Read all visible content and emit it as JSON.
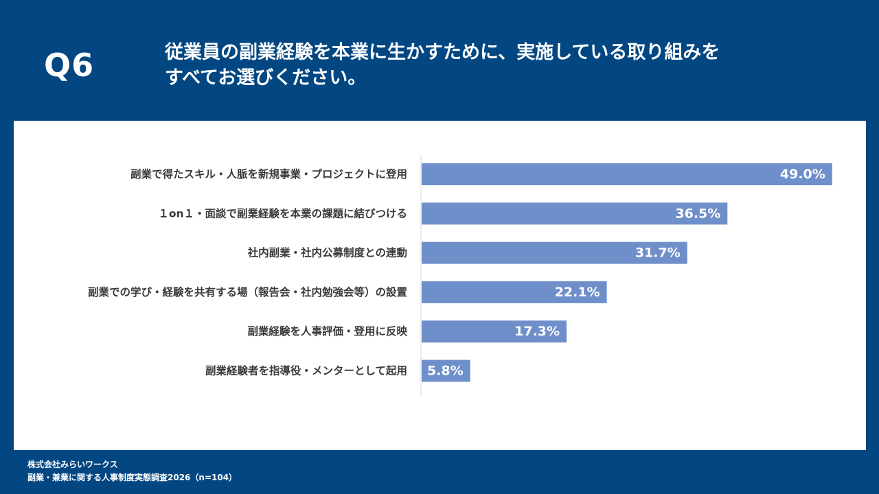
{
  "header": {
    "question_number": "Q6",
    "question_line1": "従業員の副業経験を本業に生かすために、実施している取り組みを",
    "question_line2": "すべてお選びください。"
  },
  "footer": {
    "company": "株式会社みらいワークス",
    "survey": "副業・兼業に関する人事制度実態調査2026（n=104）"
  },
  "colors": {
    "background": "#034782",
    "bar": "#6F8FCB",
    "label_in_bar": "#ffffff",
    "label_outside": "#333333"
  },
  "chart_data": {
    "type": "bar",
    "orientation": "horizontal",
    "categories": [
      "副業で得たスキル・人脈を新規事業・プロジェクトに登用",
      "１on１・面談で副業経験を本業の課題に結びつける",
      "社内副業・社内公募制度との連動",
      "副業での学び・経験を共有する場（報告会・社内勉強会等）の設置",
      "副業経験を人事評価・登用に反映",
      "副業経験者を指導役・メンターとして起用"
    ],
    "values": [
      49.0,
      36.5,
      31.7,
      22.1,
      17.3,
      5.8
    ],
    "value_labels": [
      "49.0%",
      "36.5%",
      "31.7%",
      "22.1%",
      "17.3%",
      "5.8%"
    ],
    "xlim": [
      0,
      50
    ],
    "grid": false,
    "legend": "none"
  }
}
